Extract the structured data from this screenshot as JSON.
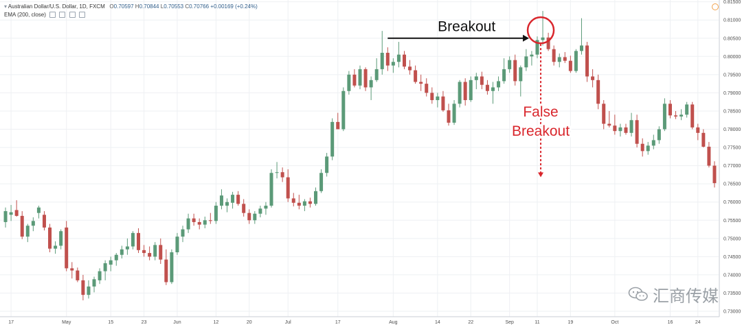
{
  "legend": {
    "symbol_line": "Australian Dollar/U.S. Dollar, 1D, FXCM",
    "ohlc": [
      {
        "label": "O",
        "value": "0.70597"
      },
      {
        "label": "H",
        "value": "0.70844"
      },
      {
        "label": "L",
        "value": "0.70553"
      },
      {
        "label": "C",
        "value": "0.70766"
      }
    ],
    "change": "+0.00169 (+0.24%)",
    "indicator": "EMA (200, close)"
  },
  "watermark": "汇商传媒",
  "colors": {
    "up": "#5b9a78",
    "down": "#c0504d",
    "annotation_red": "#d9262c",
    "annotation_black": "#111111",
    "grid": "#eef0f3",
    "axis_text": "#4d4d4d"
  },
  "chart_data": {
    "type": "candlestick",
    "title": "",
    "ylim": [
      0.7285,
      0.8155
    ],
    "y_ticks": [
      "0.81500",
      "0.81000",
      "0.80500",
      "0.80000",
      "0.79500",
      "0.79000",
      "0.78500",
      "0.78000",
      "0.77500",
      "0.77000",
      "0.76500",
      "0.76000",
      "0.75500",
      "0.75000",
      "0.74500",
      "0.74000",
      "0.73500",
      "0.73000"
    ],
    "x_ticks": [
      {
        "label": "17",
        "i": 1
      },
      {
        "label": "May",
        "i": 11
      },
      {
        "label": "15",
        "i": 19
      },
      {
        "label": "23",
        "i": 25
      },
      {
        "label": "Jun",
        "i": 31
      },
      {
        "label": "12",
        "i": 38
      },
      {
        "label": "20",
        "i": 44
      },
      {
        "label": "Jul",
        "i": 51
      },
      {
        "label": "17",
        "i": 60
      },
      {
        "label": "Aug",
        "i": 70
      },
      {
        "label": "14",
        "i": 78
      },
      {
        "label": "22",
        "i": 84
      },
      {
        "label": "Sep",
        "i": 91
      },
      {
        "label": "11",
        "i": 96
      },
      {
        "label": "19",
        "i": 102
      },
      {
        "label": "Oct",
        "i": 110
      },
      {
        "label": "16",
        "i": 120
      },
      {
        "label": "24",
        "i": 125
      }
    ],
    "candles": [
      {
        "o": 0.7545,
        "h": 0.7585,
        "l": 0.753,
        "c": 0.7575
      },
      {
        "o": 0.7565,
        "h": 0.7592,
        "l": 0.7548,
        "c": 0.7572
      },
      {
        "o": 0.7578,
        "h": 0.7605,
        "l": 0.756,
        "c": 0.7562
      },
      {
        "o": 0.7562,
        "h": 0.7575,
        "l": 0.7498,
        "c": 0.7505
      },
      {
        "o": 0.7505,
        "h": 0.754,
        "l": 0.749,
        "c": 0.7535
      },
      {
        "o": 0.7535,
        "h": 0.7558,
        "l": 0.752,
        "c": 0.7548
      },
      {
        "o": 0.757,
        "h": 0.759,
        "l": 0.7555,
        "c": 0.7585
      },
      {
        "o": 0.7565,
        "h": 0.7575,
        "l": 0.7522,
        "c": 0.753
      },
      {
        "o": 0.753,
        "h": 0.754,
        "l": 0.7462,
        "c": 0.7472
      },
      {
        "o": 0.7472,
        "h": 0.7492,
        "l": 0.7458,
        "c": 0.748
      },
      {
        "o": 0.748,
        "h": 0.7525,
        "l": 0.747,
        "c": 0.752
      },
      {
        "o": 0.753,
        "h": 0.7548,
        "l": 0.741,
        "c": 0.7418
      },
      {
        "o": 0.7418,
        "h": 0.7435,
        "l": 0.739,
        "c": 0.7412
      },
      {
        "o": 0.7412,
        "h": 0.742,
        "l": 0.738,
        "c": 0.7385
      },
      {
        "o": 0.7385,
        "h": 0.74,
        "l": 0.733,
        "c": 0.7345
      },
      {
        "o": 0.7345,
        "h": 0.7385,
        "l": 0.7335,
        "c": 0.7368
      },
      {
        "o": 0.7368,
        "h": 0.7395,
        "l": 0.7352,
        "c": 0.7388
      },
      {
        "o": 0.7385,
        "h": 0.7418,
        "l": 0.7375,
        "c": 0.741
      },
      {
        "o": 0.741,
        "h": 0.744,
        "l": 0.7385,
        "c": 0.7432
      },
      {
        "o": 0.7428,
        "h": 0.745,
        "l": 0.741,
        "c": 0.744
      },
      {
        "o": 0.744,
        "h": 0.746,
        "l": 0.7425,
        "c": 0.7455
      },
      {
        "o": 0.7455,
        "h": 0.748,
        "l": 0.7445,
        "c": 0.747
      },
      {
        "o": 0.747,
        "h": 0.75,
        "l": 0.7455,
        "c": 0.7478
      },
      {
        "o": 0.7478,
        "h": 0.752,
        "l": 0.747,
        "c": 0.7515
      },
      {
        "o": 0.7515,
        "h": 0.7528,
        "l": 0.746,
        "c": 0.7468
      },
      {
        "o": 0.7468,
        "h": 0.7482,
        "l": 0.745,
        "c": 0.746
      },
      {
        "o": 0.746,
        "h": 0.7478,
        "l": 0.744,
        "c": 0.745
      },
      {
        "o": 0.745,
        "h": 0.749,
        "l": 0.744,
        "c": 0.7482
      },
      {
        "o": 0.7482,
        "h": 0.75,
        "l": 0.743,
        "c": 0.7442
      },
      {
        "o": 0.7442,
        "h": 0.747,
        "l": 0.7372,
        "c": 0.738
      },
      {
        "o": 0.738,
        "h": 0.747,
        "l": 0.7375,
        "c": 0.7462
      },
      {
        "o": 0.7462,
        "h": 0.7515,
        "l": 0.7455,
        "c": 0.7505
      },
      {
        "o": 0.7505,
        "h": 0.7535,
        "l": 0.749,
        "c": 0.7525
      },
      {
        "o": 0.7525,
        "h": 0.7568,
        "l": 0.7515,
        "c": 0.7555
      },
      {
        "o": 0.7555,
        "h": 0.7568,
        "l": 0.7535,
        "c": 0.7545
      },
      {
        "o": 0.7545,
        "h": 0.7555,
        "l": 0.7525,
        "c": 0.7538
      },
      {
        "o": 0.7538,
        "h": 0.756,
        "l": 0.7528,
        "c": 0.755
      },
      {
        "o": 0.755,
        "h": 0.757,
        "l": 0.754,
        "c": 0.7548
      },
      {
        "o": 0.7548,
        "h": 0.76,
        "l": 0.754,
        "c": 0.759
      },
      {
        "o": 0.759,
        "h": 0.7635,
        "l": 0.758,
        "c": 0.7618
      },
      {
        "o": 0.759,
        "h": 0.761,
        "l": 0.7572,
        "c": 0.76
      },
      {
        "o": 0.7598,
        "h": 0.7628,
        "l": 0.7582,
        "c": 0.762
      },
      {
        "o": 0.762,
        "h": 0.763,
        "l": 0.759,
        "c": 0.7595
      },
      {
        "o": 0.7595,
        "h": 0.7608,
        "l": 0.756,
        "c": 0.757
      },
      {
        "o": 0.757,
        "h": 0.758,
        "l": 0.754,
        "c": 0.755
      },
      {
        "o": 0.755,
        "h": 0.7575,
        "l": 0.754,
        "c": 0.7568
      },
      {
        "o": 0.7568,
        "h": 0.759,
        "l": 0.7558,
        "c": 0.7582
      },
      {
        "o": 0.7582,
        "h": 0.76,
        "l": 0.7565,
        "c": 0.759
      },
      {
        "o": 0.759,
        "h": 0.769,
        "l": 0.7585,
        "c": 0.768
      },
      {
        "o": 0.768,
        "h": 0.771,
        "l": 0.7665,
        "c": 0.7682
      },
      {
        "o": 0.7682,
        "h": 0.7695,
        "l": 0.7655,
        "c": 0.7668
      },
      {
        "o": 0.7668,
        "h": 0.769,
        "l": 0.76,
        "c": 0.761
      },
      {
        "o": 0.761,
        "h": 0.7625,
        "l": 0.7588,
        "c": 0.7598
      },
      {
        "o": 0.7598,
        "h": 0.762,
        "l": 0.758,
        "c": 0.759
      },
      {
        "o": 0.759,
        "h": 0.7608,
        "l": 0.7575,
        "c": 0.7602
      },
      {
        "o": 0.7602,
        "h": 0.7612,
        "l": 0.7585,
        "c": 0.7595
      },
      {
        "o": 0.7595,
        "h": 0.764,
        "l": 0.759,
        "c": 0.763
      },
      {
        "o": 0.763,
        "h": 0.769,
        "l": 0.7625,
        "c": 0.768
      },
      {
        "o": 0.768,
        "h": 0.7735,
        "l": 0.767,
        "c": 0.7725
      },
      {
        "o": 0.7725,
        "h": 0.783,
        "l": 0.7715,
        "c": 0.782
      },
      {
        "o": 0.782,
        "h": 0.7845,
        "l": 0.78,
        "c": 0.78
      },
      {
        "o": 0.78,
        "h": 0.7915,
        "l": 0.7795,
        "c": 0.7905
      },
      {
        "o": 0.7905,
        "h": 0.796,
        "l": 0.7895,
        "c": 0.795
      },
      {
        "o": 0.795,
        "h": 0.7965,
        "l": 0.7915,
        "c": 0.792
      },
      {
        "o": 0.792,
        "h": 0.7975,
        "l": 0.791,
        "c": 0.7965
      },
      {
        "o": 0.7965,
        "h": 0.797,
        "l": 0.7905,
        "c": 0.7915
      },
      {
        "o": 0.7915,
        "h": 0.7945,
        "l": 0.788,
        "c": 0.7935
      },
      {
        "o": 0.7935,
        "h": 0.7995,
        "l": 0.793,
        "c": 0.7965
      },
      {
        "o": 0.7965,
        "h": 0.807,
        "l": 0.795,
        "c": 0.801
      },
      {
        "o": 0.801,
        "h": 0.8025,
        "l": 0.796,
        "c": 0.7975
      },
      {
        "o": 0.7975,
        "h": 0.7995,
        "l": 0.7955,
        "c": 0.7985
      },
      {
        "o": 0.7985,
        "h": 0.804,
        "l": 0.797,
        "c": 0.8005
      },
      {
        "o": 0.8005,
        "h": 0.8015,
        "l": 0.7965,
        "c": 0.7972
      },
      {
        "o": 0.7972,
        "h": 0.799,
        "l": 0.795,
        "c": 0.7962
      },
      {
        "o": 0.7962,
        "h": 0.7975,
        "l": 0.7925,
        "c": 0.793
      },
      {
        "o": 0.793,
        "h": 0.795,
        "l": 0.7905,
        "c": 0.7925
      },
      {
        "o": 0.7925,
        "h": 0.794,
        "l": 0.789,
        "c": 0.79
      },
      {
        "o": 0.79,
        "h": 0.7915,
        "l": 0.787,
        "c": 0.788
      },
      {
        "o": 0.788,
        "h": 0.79,
        "l": 0.786,
        "c": 0.789
      },
      {
        "o": 0.789,
        "h": 0.7905,
        "l": 0.7848,
        "c": 0.7852
      },
      {
        "o": 0.7852,
        "h": 0.787,
        "l": 0.781,
        "c": 0.7818
      },
      {
        "o": 0.7818,
        "h": 0.788,
        "l": 0.7812,
        "c": 0.787
      },
      {
        "o": 0.787,
        "h": 0.7935,
        "l": 0.786,
        "c": 0.793
      },
      {
        "o": 0.793,
        "h": 0.794,
        "l": 0.7865,
        "c": 0.788
      },
      {
        "o": 0.788,
        "h": 0.7945,
        "l": 0.7875,
        "c": 0.7935
      },
      {
        "o": 0.7935,
        "h": 0.7955,
        "l": 0.791,
        "c": 0.7945
      },
      {
        "o": 0.7945,
        "h": 0.7958,
        "l": 0.791,
        "c": 0.7922
      },
      {
        "o": 0.7922,
        "h": 0.7935,
        "l": 0.7895,
        "c": 0.7905
      },
      {
        "o": 0.7905,
        "h": 0.793,
        "l": 0.787,
        "c": 0.7915
      },
      {
        "o": 0.7915,
        "h": 0.7945,
        "l": 0.7905,
        "c": 0.7932
      },
      {
        "o": 0.7932,
        "h": 0.7995,
        "l": 0.7925,
        "c": 0.7965
      },
      {
        "o": 0.7965,
        "h": 0.8,
        "l": 0.7955,
        "c": 0.799
      },
      {
        "o": 0.799,
        "h": 0.8005,
        "l": 0.792,
        "c": 0.7932
      },
      {
        "o": 0.7932,
        "h": 0.7975,
        "l": 0.789,
        "c": 0.797
      },
      {
        "o": 0.797,
        "h": 0.802,
        "l": 0.796,
        "c": 0.8
      },
      {
        "o": 0.8,
        "h": 0.8015,
        "l": 0.7975,
        "c": 0.8005
      },
      {
        "o": 0.8005,
        "h": 0.8055,
        "l": 0.7995,
        "c": 0.8045
      },
      {
        "o": 0.8045,
        "h": 0.8125,
        "l": 0.803,
        "c": 0.8052
      },
      {
        "o": 0.8052,
        "h": 0.8065,
        "l": 0.8015,
        "c": 0.802
      },
      {
        "o": 0.802,
        "h": 0.803,
        "l": 0.7975,
        "c": 0.7985
      },
      {
        "o": 0.7985,
        "h": 0.8008,
        "l": 0.797,
        "c": 0.7998
      },
      {
        "o": 0.7998,
        "h": 0.8012,
        "l": 0.7982,
        "c": 0.7988
      },
      {
        "o": 0.7988,
        "h": 0.8002,
        "l": 0.7955,
        "c": 0.796
      },
      {
        "o": 0.796,
        "h": 0.802,
        "l": 0.7955,
        "c": 0.8015
      },
      {
        "o": 0.8015,
        "h": 0.8105,
        "l": 0.8005,
        "c": 0.803
      },
      {
        "o": 0.803,
        "h": 0.804,
        "l": 0.793,
        "c": 0.7945
      },
      {
        "o": 0.7945,
        "h": 0.7965,
        "l": 0.7915,
        "c": 0.7935
      },
      {
        "o": 0.7935,
        "h": 0.795,
        "l": 0.7855,
        "c": 0.787
      },
      {
        "o": 0.787,
        "h": 0.788,
        "l": 0.78,
        "c": 0.7815
      },
      {
        "o": 0.7815,
        "h": 0.785,
        "l": 0.7805,
        "c": 0.781
      },
      {
        "o": 0.781,
        "h": 0.784,
        "l": 0.7785,
        "c": 0.7795
      },
      {
        "o": 0.7795,
        "h": 0.7815,
        "l": 0.778,
        "c": 0.7805
      },
      {
        "o": 0.7805,
        "h": 0.7815,
        "l": 0.7785,
        "c": 0.779
      },
      {
        "o": 0.779,
        "h": 0.7845,
        "l": 0.778,
        "c": 0.7825
      },
      {
        "o": 0.7825,
        "h": 0.784,
        "l": 0.775,
        "c": 0.776
      },
      {
        "o": 0.776,
        "h": 0.7775,
        "l": 0.7725,
        "c": 0.774
      },
      {
        "o": 0.774,
        "h": 0.7765,
        "l": 0.773,
        "c": 0.7755
      },
      {
        "o": 0.7755,
        "h": 0.7785,
        "l": 0.7745,
        "c": 0.777
      },
      {
        "o": 0.777,
        "h": 0.7808,
        "l": 0.776,
        "c": 0.78
      },
      {
        "o": 0.78,
        "h": 0.7885,
        "l": 0.7795,
        "c": 0.787
      },
      {
        "o": 0.787,
        "h": 0.788,
        "l": 0.783,
        "c": 0.7838
      },
      {
        "o": 0.7838,
        "h": 0.785,
        "l": 0.7828,
        "c": 0.7835
      },
      {
        "o": 0.7835,
        "h": 0.7855,
        "l": 0.7825,
        "c": 0.784
      },
      {
        "o": 0.784,
        "h": 0.7875,
        "l": 0.7832,
        "c": 0.7868
      },
      {
        "o": 0.7868,
        "h": 0.7875,
        "l": 0.78,
        "c": 0.7805
      },
      {
        "o": 0.7805,
        "h": 0.7815,
        "l": 0.777,
        "c": 0.779
      },
      {
        "o": 0.779,
        "h": 0.78,
        "l": 0.775,
        "c": 0.7752
      },
      {
        "o": 0.7752,
        "h": 0.7765,
        "l": 0.7695,
        "c": 0.77
      },
      {
        "o": 0.77,
        "h": 0.7712,
        "l": 0.764,
        "c": 0.7652
      }
    ],
    "annotations": {
      "breakout_label": "Breakout",
      "false_breakout_label": [
        "False",
        "Breakout"
      ],
      "breakout_level": 0.8052,
      "breakout_arrow_from": 69,
      "breakout_arrow_to": 97,
      "circle_candle": 97,
      "false_breakout_arrow_to_price": 0.767
    }
  }
}
